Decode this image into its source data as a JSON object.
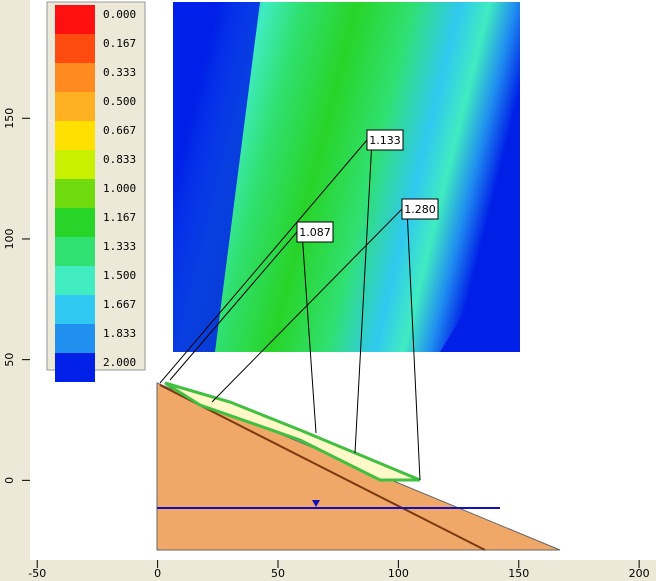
{
  "legend": {
    "labels": [
      "0.000",
      "0.167",
      "0.333",
      "0.500",
      "0.667",
      "0.833",
      "1.000",
      "1.167",
      "1.333",
      "1.500",
      "1.667",
      "1.833",
      "2.000"
    ],
    "colors": [
      "#ff1010",
      "#ff4a10",
      "#ff8a20",
      "#ffb020",
      "#ffe000",
      "#c8f000",
      "#70dc10",
      "#28d428",
      "#30e070",
      "#40ecc0",
      "#30c8f0",
      "#2090f0",
      "#0020e8"
    ]
  },
  "axes": {
    "xlim": [
      -53,
      207
    ],
    "xticks": [
      -50,
      0,
      50,
      100,
      150,
      200
    ],
    "ylim": [
      -33,
      199
    ],
    "yticks": [
      0,
      50,
      100,
      150
    ]
  },
  "annotations": [
    "1.133",
    "1.087",
    "1.280"
  ]
}
